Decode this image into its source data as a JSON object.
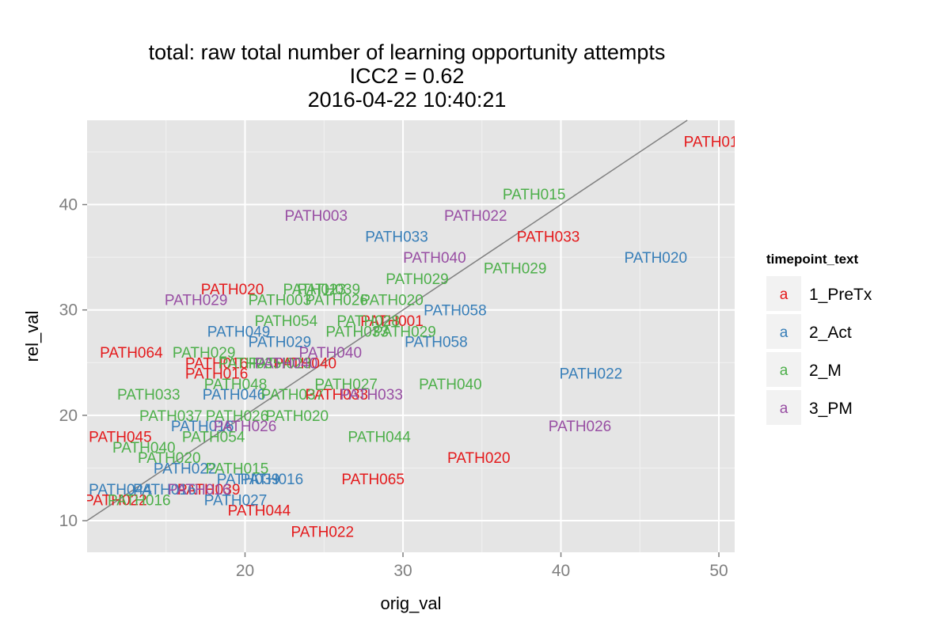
{
  "chart_data": {
    "type": "scatter",
    "title": [
      "total: raw total number of learning opportunity attempts",
      "ICC2 = 0.62",
      "2016-04-22 10:40:21"
    ],
    "xlabel": "orig_val",
    "ylabel": "rel_val",
    "xlim": [
      10,
      51
    ],
    "ylim": [
      7,
      48
    ],
    "xticks": [
      20,
      30,
      40,
      50
    ],
    "yticks": [
      10,
      20,
      30,
      40
    ],
    "grid": true,
    "reference_line": {
      "slope": 1,
      "intercept": 0,
      "color": "#808080"
    },
    "legend": {
      "title": "timepoint_text",
      "placement": "right",
      "key_glyph": "a",
      "entries": [
        {
          "name": "1_PreTx",
          "color": "#E41A1C"
        },
        {
          "name": "2_Act",
          "color": "#377EB8"
        },
        {
          "name": "2_M",
          "color": "#4DAF4A"
        },
        {
          "name": "3_PM",
          "color": "#984EA3"
        }
      ]
    },
    "series": [
      {
        "name": "1_PreTx",
        "color": "#E41A1C",
        "points": [
          {
            "x": 49.5,
            "y": 46,
            "label": "PATH01"
          },
          {
            "x": 39.2,
            "y": 37,
            "label": "PATH033"
          },
          {
            "x": 19.2,
            "y": 32,
            "label": "PATH020"
          },
          {
            "x": 29.3,
            "y": 29,
            "label": "PATH001"
          },
          {
            "x": 12.8,
            "y": 26,
            "label": "PATH064"
          },
          {
            "x": 23.8,
            "y": 25,
            "label": "PATH040"
          },
          {
            "x": 18.2,
            "y": 25,
            "label": "PATH016"
          },
          {
            "x": 18.2,
            "y": 24,
            "label": "PATH016"
          },
          {
            "x": 25.8,
            "y": 22,
            "label": "PATH033"
          },
          {
            "x": 12.1,
            "y": 18,
            "label": "PATH045"
          },
          {
            "x": 34.8,
            "y": 16,
            "label": "PATH020"
          },
          {
            "x": 28.1,
            "y": 14,
            "label": "PATH065"
          },
          {
            "x": 17.7,
            "y": 13,
            "label": "PATH039"
          },
          {
            "x": 11.8,
            "y": 12,
            "label": "PATH022"
          },
          {
            "x": 20.9,
            "y": 11,
            "label": "PATH044"
          },
          {
            "x": 24.9,
            "y": 9,
            "label": "PATH022"
          }
        ]
      },
      {
        "name": "2_Act",
        "color": "#377EB8",
        "points": [
          {
            "x": 46,
            "y": 35,
            "label": "PATH020"
          },
          {
            "x": 29.6,
            "y": 37,
            "label": "PATH033"
          },
          {
            "x": 33.3,
            "y": 30,
            "label": "PATH058"
          },
          {
            "x": 32.1,
            "y": 27,
            "label": "PATH058"
          },
          {
            "x": 41.9,
            "y": 24,
            "label": "PATH022"
          },
          {
            "x": 19.6,
            "y": 28,
            "label": "PATH049"
          },
          {
            "x": 22.2,
            "y": 27,
            "label": "PATH029"
          },
          {
            "x": 19.3,
            "y": 22,
            "label": "PATH046"
          },
          {
            "x": 17.3,
            "y": 19,
            "label": "PATH016"
          },
          {
            "x": 16.2,
            "y": 15,
            "label": "PATH022"
          },
          {
            "x": 21.7,
            "y": 14,
            "label": "PATH016"
          },
          {
            "x": 20.2,
            "y": 14,
            "label": "PATH039"
          },
          {
            "x": 19.4,
            "y": 12,
            "label": "PATH027"
          },
          {
            "x": 12.1,
            "y": 13,
            "label": "PATH044"
          },
          {
            "x": 14.9,
            "y": 13,
            "label": "PATH016"
          }
        ]
      },
      {
        "name": "2_M",
        "color": "#4DAF4A",
        "points": [
          {
            "x": 38.3,
            "y": 41,
            "label": "PATH015"
          },
          {
            "x": 37.1,
            "y": 34,
            "label": "PATH029"
          },
          {
            "x": 30.9,
            "y": 33,
            "label": "PATH029"
          },
          {
            "x": 25.3,
            "y": 32,
            "label": "PATH039"
          },
          {
            "x": 24.4,
            "y": 32,
            "label": "PATH023"
          },
          {
            "x": 22.2,
            "y": 31,
            "label": "PATH003"
          },
          {
            "x": 25.8,
            "y": 31,
            "label": "PATH026"
          },
          {
            "x": 29.3,
            "y": 31,
            "label": "PATH020"
          },
          {
            "x": 22.6,
            "y": 29,
            "label": "PATH054"
          },
          {
            "x": 27.8,
            "y": 29,
            "label": "PATH028"
          },
          {
            "x": 27.1,
            "y": 28,
            "label": "PATH033"
          },
          {
            "x": 30.1,
            "y": 28,
            "label": "PATH029"
          },
          {
            "x": 17.4,
            "y": 26,
            "label": "PATH029"
          },
          {
            "x": 20.3,
            "y": 25,
            "label": "PATH035"
          },
          {
            "x": 22.2,
            "y": 25,
            "label": "PATH023"
          },
          {
            "x": 19.4,
            "y": 23,
            "label": "PATH048"
          },
          {
            "x": 26.4,
            "y": 23,
            "label": "PATH027"
          },
          {
            "x": 33,
            "y": 23,
            "label": "PATH040"
          },
          {
            "x": 13.9,
            "y": 22,
            "label": "PATH033"
          },
          {
            "x": 23,
            "y": 22,
            "label": "PATH037"
          },
          {
            "x": 15.3,
            "y": 20,
            "label": "PATH037"
          },
          {
            "x": 19.5,
            "y": 20,
            "label": "PATH026"
          },
          {
            "x": 23.3,
            "y": 20,
            "label": "PATH020"
          },
          {
            "x": 18,
            "y": 18,
            "label": "PATH054"
          },
          {
            "x": 28.5,
            "y": 18,
            "label": "PATH044"
          },
          {
            "x": 13.6,
            "y": 17,
            "label": "PATH040"
          },
          {
            "x": 15.2,
            "y": 16,
            "label": "PATH020"
          },
          {
            "x": 19.5,
            "y": 15,
            "label": "PATH015"
          },
          {
            "x": 13.3,
            "y": 12,
            "label": "PATH016"
          }
        ]
      },
      {
        "name": "3_PM",
        "color": "#984EA3",
        "points": [
          {
            "x": 24.5,
            "y": 39,
            "label": "PATH003"
          },
          {
            "x": 34.6,
            "y": 39,
            "label": "PATH022"
          },
          {
            "x": 32,
            "y": 35,
            "label": "PATH040"
          },
          {
            "x": 16.9,
            "y": 31,
            "label": "PATH029"
          },
          {
            "x": 25.4,
            "y": 26,
            "label": "PATH040"
          },
          {
            "x": 22.6,
            "y": 25,
            "label": "PATH040"
          },
          {
            "x": 28,
            "y": 22,
            "label": "PATH033"
          },
          {
            "x": 20,
            "y": 19,
            "label": "PATH026"
          },
          {
            "x": 41.2,
            "y": 19,
            "label": "PATH026"
          },
          {
            "x": 17.1,
            "y": 13,
            "label": "PATH016"
          }
        ]
      }
    ]
  }
}
